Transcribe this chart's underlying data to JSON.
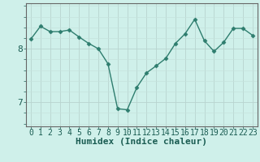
{
  "x": [
    0,
    1,
    2,
    3,
    4,
    5,
    6,
    7,
    8,
    9,
    10,
    11,
    12,
    13,
    14,
    15,
    16,
    17,
    18,
    19,
    20,
    21,
    22,
    23
  ],
  "y": [
    8.18,
    8.42,
    8.32,
    8.32,
    8.35,
    8.22,
    8.1,
    8.0,
    7.72,
    6.88,
    6.86,
    7.28,
    7.55,
    7.68,
    7.82,
    8.1,
    8.28,
    8.55,
    8.15,
    7.95,
    8.12,
    8.38,
    8.38,
    8.25
  ],
  "line_color": "#2e7d6e",
  "marker": "D",
  "markersize": 2.5,
  "linewidth": 1.0,
  "bg_color": "#cff0ea",
  "grid_color_major": "#b8d4cf",
  "grid_color_minor": "#c5e2dd",
  "xlabel": "Humidex (Indice chaleur)",
  "xlabel_fontsize": 8,
  "yticks": [
    7,
    8
  ],
  "ylim": [
    6.55,
    8.85
  ],
  "xlim": [
    -0.5,
    23.5
  ],
  "tick_fontsize": 7,
  "spine_color": "#666666"
}
